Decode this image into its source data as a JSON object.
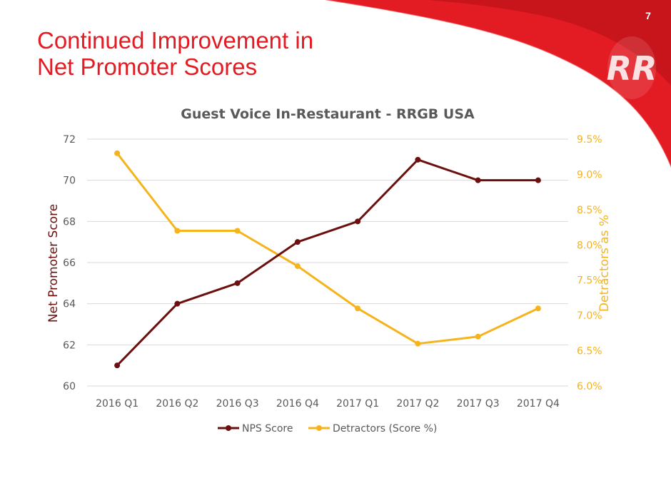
{
  "slide": {
    "title_line1": "Continued Improvement in",
    "title_line2": "Net Promoter Scores",
    "page_number": "7",
    "logo_text": "RR"
  },
  "colors": {
    "brand_red": "#e31b23",
    "nps": "#6b0f0f",
    "detractors": "#f5b31c",
    "grid": "#d9d9d9",
    "tick_text": "#595959"
  },
  "chart_data": {
    "type": "line",
    "title": "Guest Voice In-Restaurant - RRGB USA",
    "categories": [
      "2016 Q1",
      "2016 Q2",
      "2016 Q3",
      "2016 Q4",
      "2017 Q1",
      "2017 Q2",
      "2017 Q3",
      "2017 Q4"
    ],
    "series": [
      {
        "name": "NPS Score",
        "axis": "left",
        "values": [
          61,
          64,
          65,
          67,
          68,
          71,
          70,
          70
        ]
      },
      {
        "name": "Detractors (Score %)",
        "axis": "right",
        "values": [
          9.3,
          8.2,
          8.2,
          7.7,
          7.1,
          6.6,
          6.7,
          7.1
        ]
      }
    ],
    "ylabel": "Net Promoter Score",
    "ylim": [
      60,
      72
    ],
    "yticks": [
      "60",
      "62",
      "64",
      "66",
      "68",
      "70",
      "72"
    ],
    "y2label": "Detractors as %",
    "y2lim": [
      6.0,
      9.5
    ],
    "y2ticks": [
      "6.0%",
      "6.5%",
      "7.0%",
      "7.5%",
      "8.0%",
      "8.5%",
      "9.0%",
      "9.5%"
    ],
    "grid": true,
    "legend_position": "bottom"
  }
}
